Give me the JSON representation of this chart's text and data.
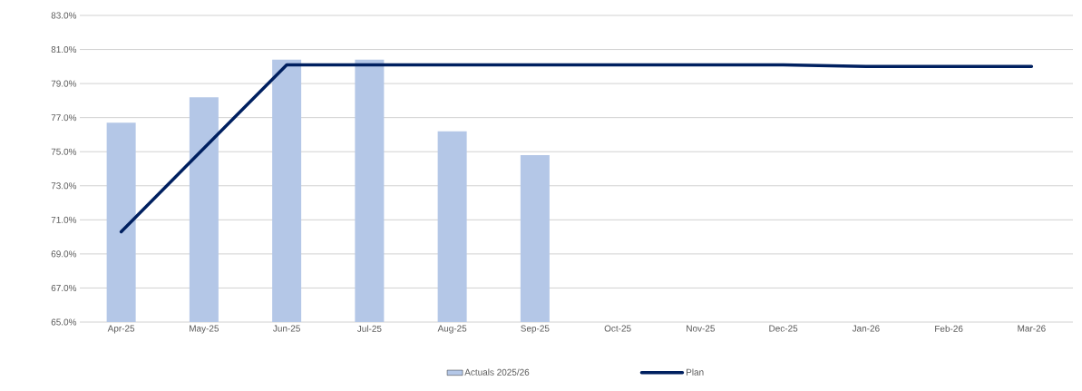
{
  "chart_data": {
    "type": "bar",
    "categories": [
      "Apr-25",
      "May-25",
      "Jun-25",
      "Jul-25",
      "Aug-25",
      "Sep-25",
      "Oct-25",
      "Nov-25",
      "Dec-25",
      "Jan-26",
      "Feb-26",
      "Mar-26"
    ],
    "series": [
      {
        "name": "Actuals 2025/26",
        "color": "#b4c7e7",
        "values": [
          76.7,
          78.2,
          80.4,
          80.4,
          76.2,
          74.8,
          null,
          null,
          null,
          null,
          null,
          null
        ]
      },
      {
        "name": "Plan",
        "type": "line",
        "color": "#002060",
        "values": [
          70.3,
          75.2,
          80.1,
          80.1,
          80.1,
          80.1,
          80.1,
          80.1,
          80.1,
          80.0,
          80.0,
          80.0
        ]
      }
    ],
    "ylim": [
      65,
      83
    ],
    "yticks": [
      {
        "value": 65,
        "label": "65.0%"
      },
      {
        "value": 67,
        "label": "67.0%"
      },
      {
        "value": 69,
        "label": "69.0%"
      },
      {
        "value": 71,
        "label": "71.0%"
      },
      {
        "value": 73,
        "label": "73.0%"
      },
      {
        "value": 75,
        "label": "75.0%"
      },
      {
        "value": 77,
        "label": "77.0%"
      },
      {
        "value": 79,
        "label": "79.0%"
      },
      {
        "value": 81,
        "label": "81.0%"
      },
      {
        "value": 83,
        "label": "83.0%"
      }
    ],
    "grid": "y",
    "legend": "bottom",
    "marker": "none"
  }
}
